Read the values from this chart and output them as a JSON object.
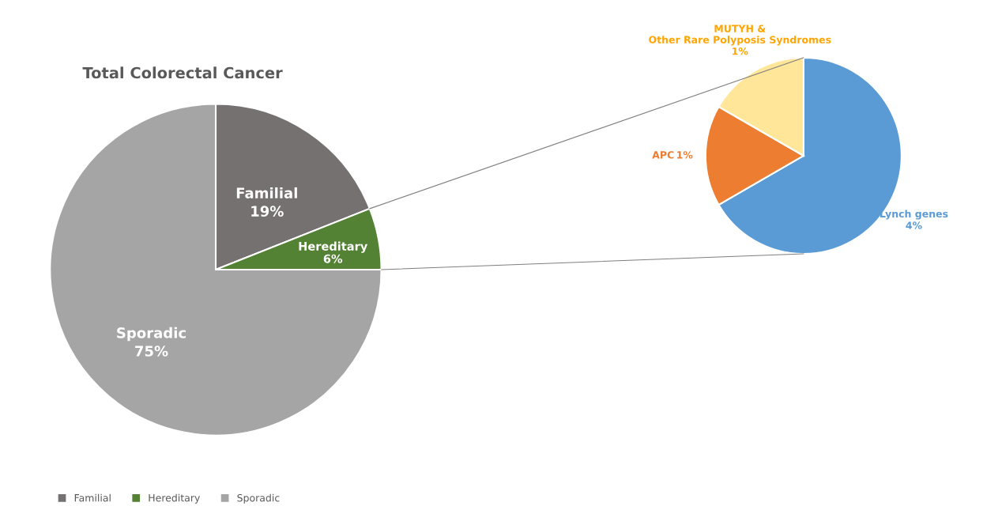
{
  "chart_data": [
    {
      "type": "pie",
      "title": "Total Colorectal Cancer",
      "categories": [
        "Familial",
        "Hereditary",
        "Sporadic"
      ],
      "values": [
        19,
        6,
        75
      ],
      "colors": [
        "#767171",
        "#548235",
        "#a5a5a5"
      ],
      "value_labels": [
        "19%",
        "6%",
        "75%"
      ],
      "legend": "bottom"
    },
    {
      "type": "pie",
      "categories": [
        "Lynch genes",
        "APC",
        "MUTYH &\nOther Rare Polyposis Syndromes"
      ],
      "values": [
        4,
        1,
        1
      ],
      "colors": [
        "#5b9bd5",
        "#ed7d31",
        "#ffe699"
      ],
      "value_labels": [
        "4%",
        "1%",
        "1%"
      ]
    }
  ]
}
